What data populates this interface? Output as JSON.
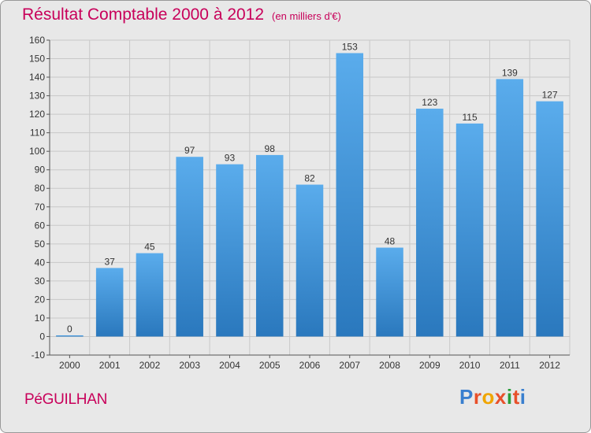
{
  "title": "Résultat Comptable 2000 à 2012",
  "subtitle": "(en milliers d'€)",
  "commune": "PéGUILHAN",
  "logo": {
    "letters": [
      "P",
      "r",
      "o",
      "x",
      "i",
      "t",
      "i"
    ],
    "colors": [
      "#3a7fcf",
      "#e8502a",
      "#f0a500",
      "#e8502a",
      "#2a9d3a",
      "#e8502a",
      "#3a7fcf"
    ]
  },
  "colors": {
    "bar": "#4a9de0",
    "bar_dark": "#2f7fc4",
    "accent": "#c8005a"
  },
  "chart_data": {
    "type": "bar",
    "title": "Résultat Comptable 2000 à 2012",
    "ylabel": "en milliers d'€",
    "categories": [
      "2000",
      "2001",
      "2002",
      "2003",
      "2004",
      "2005",
      "2006",
      "2007",
      "2008",
      "2009",
      "2010",
      "2011",
      "2012"
    ],
    "values": [
      0,
      37,
      45,
      97,
      93,
      98,
      82,
      153,
      48,
      123,
      115,
      139,
      127
    ],
    "ylim": [
      -10,
      160
    ],
    "yticks": [
      -10,
      0,
      10,
      20,
      30,
      40,
      50,
      60,
      70,
      80,
      90,
      100,
      110,
      120,
      130,
      140,
      150,
      160
    ],
    "grid": true
  }
}
